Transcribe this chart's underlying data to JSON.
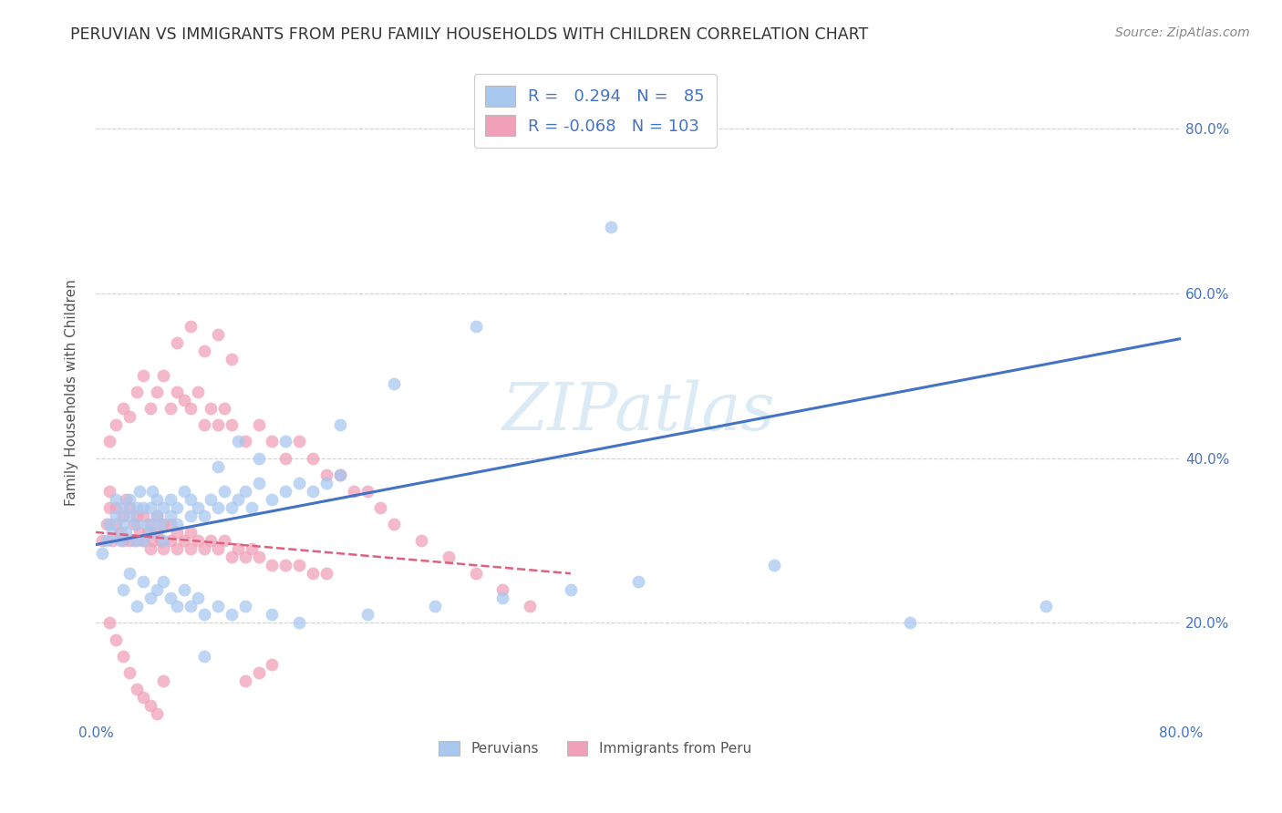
{
  "title": "PERUVIAN VS IMMIGRANTS FROM PERU FAMILY HOUSEHOLDS WITH CHILDREN CORRELATION CHART",
  "source": "Source: ZipAtlas.com",
  "ylabel": "Family Households with Children",
  "legend_label1": "Peruvians",
  "legend_label2": "Immigrants from Peru",
  "R1": 0.294,
  "N1": 85,
  "R2": -0.068,
  "N2": 103,
  "color_blue": "#A8C8F0",
  "color_pink": "#F0A0B8",
  "line_color_blue": "#4472C4",
  "line_color_pink": "#E06080",
  "watermark": "ZIPatlas",
  "xmin": 0.0,
  "xmax": 0.8,
  "ymin": 0.08,
  "ymax": 0.88,
  "blue_x": [
    0.005,
    0.008,
    0.01,
    0.012,
    0.015,
    0.015,
    0.018,
    0.02,
    0.02,
    0.022,
    0.025,
    0.025,
    0.028,
    0.03,
    0.03,
    0.032,
    0.035,
    0.035,
    0.038,
    0.04,
    0.04,
    0.042,
    0.045,
    0.045,
    0.048,
    0.05,
    0.05,
    0.055,
    0.055,
    0.06,
    0.06,
    0.065,
    0.07,
    0.07,
    0.075,
    0.08,
    0.085,
    0.09,
    0.095,
    0.1,
    0.105,
    0.11,
    0.115,
    0.12,
    0.13,
    0.14,
    0.15,
    0.16,
    0.17,
    0.18,
    0.02,
    0.025,
    0.03,
    0.035,
    0.04,
    0.045,
    0.05,
    0.055,
    0.06,
    0.065,
    0.07,
    0.075,
    0.08,
    0.09,
    0.1,
    0.11,
    0.13,
    0.15,
    0.2,
    0.25,
    0.3,
    0.35,
    0.4,
    0.5,
    0.6,
    0.7,
    0.38,
    0.28,
    0.22,
    0.18,
    0.14,
    0.12,
    0.105,
    0.09,
    0.08
  ],
  "blue_y": [
    0.285,
    0.3,
    0.32,
    0.31,
    0.33,
    0.35,
    0.3,
    0.32,
    0.34,
    0.31,
    0.33,
    0.35,
    0.3,
    0.32,
    0.34,
    0.36,
    0.3,
    0.34,
    0.32,
    0.31,
    0.34,
    0.36,
    0.33,
    0.35,
    0.32,
    0.3,
    0.34,
    0.33,
    0.35,
    0.32,
    0.34,
    0.36,
    0.33,
    0.35,
    0.34,
    0.33,
    0.35,
    0.34,
    0.36,
    0.34,
    0.35,
    0.36,
    0.34,
    0.37,
    0.35,
    0.36,
    0.37,
    0.36,
    0.37,
    0.38,
    0.24,
    0.26,
    0.22,
    0.25,
    0.23,
    0.24,
    0.25,
    0.23,
    0.22,
    0.24,
    0.22,
    0.23,
    0.21,
    0.22,
    0.21,
    0.22,
    0.21,
    0.2,
    0.21,
    0.22,
    0.23,
    0.24,
    0.25,
    0.27,
    0.2,
    0.22,
    0.68,
    0.56,
    0.49,
    0.44,
    0.42,
    0.4,
    0.42,
    0.39,
    0.16
  ],
  "pink_x": [
    0.005,
    0.008,
    0.01,
    0.01,
    0.012,
    0.015,
    0.015,
    0.018,
    0.02,
    0.02,
    0.022,
    0.025,
    0.025,
    0.028,
    0.03,
    0.03,
    0.032,
    0.035,
    0.035,
    0.038,
    0.04,
    0.04,
    0.042,
    0.045,
    0.045,
    0.048,
    0.05,
    0.05,
    0.055,
    0.055,
    0.06,
    0.06,
    0.065,
    0.07,
    0.07,
    0.075,
    0.08,
    0.085,
    0.09,
    0.095,
    0.1,
    0.105,
    0.11,
    0.115,
    0.12,
    0.13,
    0.14,
    0.15,
    0.16,
    0.17,
    0.01,
    0.015,
    0.02,
    0.025,
    0.03,
    0.035,
    0.04,
    0.045,
    0.05,
    0.055,
    0.06,
    0.065,
    0.07,
    0.075,
    0.08,
    0.085,
    0.09,
    0.095,
    0.1,
    0.11,
    0.12,
    0.13,
    0.14,
    0.15,
    0.16,
    0.17,
    0.18,
    0.19,
    0.2,
    0.21,
    0.22,
    0.24,
    0.26,
    0.28,
    0.3,
    0.32,
    0.01,
    0.015,
    0.02,
    0.025,
    0.03,
    0.035,
    0.04,
    0.045,
    0.05,
    0.06,
    0.07,
    0.08,
    0.09,
    0.1,
    0.11,
    0.12,
    0.13
  ],
  "pink_y": [
    0.3,
    0.32,
    0.34,
    0.36,
    0.3,
    0.32,
    0.34,
    0.31,
    0.3,
    0.33,
    0.35,
    0.3,
    0.34,
    0.32,
    0.3,
    0.33,
    0.31,
    0.3,
    0.33,
    0.31,
    0.29,
    0.32,
    0.3,
    0.31,
    0.33,
    0.3,
    0.29,
    0.32,
    0.3,
    0.32,
    0.29,
    0.31,
    0.3,
    0.29,
    0.31,
    0.3,
    0.29,
    0.3,
    0.29,
    0.3,
    0.28,
    0.29,
    0.28,
    0.29,
    0.28,
    0.27,
    0.27,
    0.27,
    0.26,
    0.26,
    0.42,
    0.44,
    0.46,
    0.45,
    0.48,
    0.5,
    0.46,
    0.48,
    0.5,
    0.46,
    0.48,
    0.47,
    0.46,
    0.48,
    0.44,
    0.46,
    0.44,
    0.46,
    0.44,
    0.42,
    0.44,
    0.42,
    0.4,
    0.42,
    0.4,
    0.38,
    0.38,
    0.36,
    0.36,
    0.34,
    0.32,
    0.3,
    0.28,
    0.26,
    0.24,
    0.22,
    0.2,
    0.18,
    0.16,
    0.14,
    0.12,
    0.11,
    0.1,
    0.09,
    0.13,
    0.54,
    0.56,
    0.53,
    0.55,
    0.52,
    0.13,
    0.14,
    0.15
  ],
  "blue_line_x0": 0.0,
  "blue_line_x1": 0.8,
  "blue_line_y0": 0.295,
  "blue_line_y1": 0.545,
  "pink_line_x0": 0.0,
  "pink_line_x1": 0.35,
  "pink_line_y0": 0.31,
  "pink_line_y1": 0.26
}
